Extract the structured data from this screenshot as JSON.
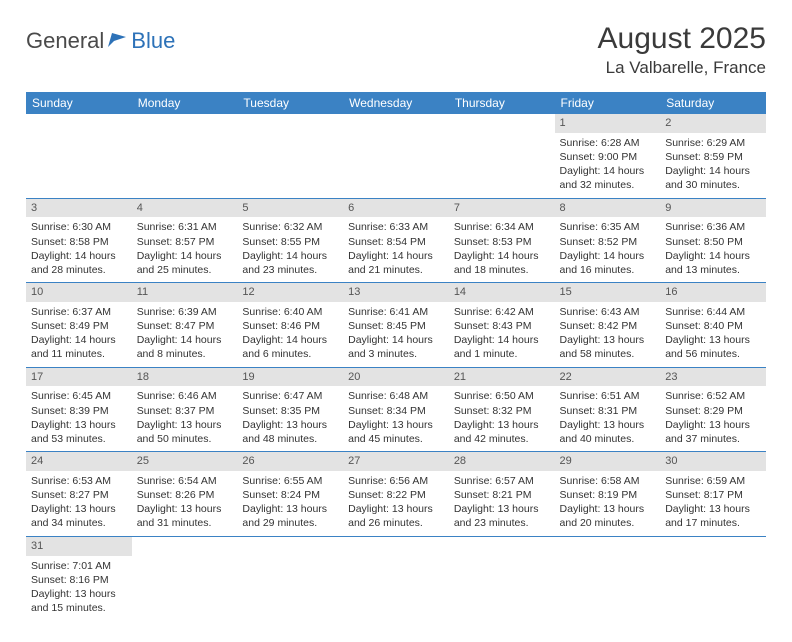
{
  "logo": {
    "text1": "General",
    "text2": "Blue"
  },
  "title": "August 2025",
  "location": "La Valbarelle, France",
  "colors": {
    "header_bg": "#3b82c4",
    "header_text": "#ffffff",
    "daynum_bg": "#e3e3e3",
    "border": "#3b82c4",
    "logo_gray": "#4a4a4a",
    "logo_blue": "#2d72b8"
  },
  "day_headers": [
    "Sunday",
    "Monday",
    "Tuesday",
    "Wednesday",
    "Thursday",
    "Friday",
    "Saturday"
  ],
  "weeks": [
    [
      {
        "n": "",
        "lines": []
      },
      {
        "n": "",
        "lines": []
      },
      {
        "n": "",
        "lines": []
      },
      {
        "n": "",
        "lines": []
      },
      {
        "n": "",
        "lines": []
      },
      {
        "n": "1",
        "lines": [
          "Sunrise: 6:28 AM",
          "Sunset: 9:00 PM",
          "Daylight: 14 hours",
          "and 32 minutes."
        ]
      },
      {
        "n": "2",
        "lines": [
          "Sunrise: 6:29 AM",
          "Sunset: 8:59 PM",
          "Daylight: 14 hours",
          "and 30 minutes."
        ]
      }
    ],
    [
      {
        "n": "3",
        "lines": [
          "Sunrise: 6:30 AM",
          "Sunset: 8:58 PM",
          "Daylight: 14 hours",
          "and 28 minutes."
        ]
      },
      {
        "n": "4",
        "lines": [
          "Sunrise: 6:31 AM",
          "Sunset: 8:57 PM",
          "Daylight: 14 hours",
          "and 25 minutes."
        ]
      },
      {
        "n": "5",
        "lines": [
          "Sunrise: 6:32 AM",
          "Sunset: 8:55 PM",
          "Daylight: 14 hours",
          "and 23 minutes."
        ]
      },
      {
        "n": "6",
        "lines": [
          "Sunrise: 6:33 AM",
          "Sunset: 8:54 PM",
          "Daylight: 14 hours",
          "and 21 minutes."
        ]
      },
      {
        "n": "7",
        "lines": [
          "Sunrise: 6:34 AM",
          "Sunset: 8:53 PM",
          "Daylight: 14 hours",
          "and 18 minutes."
        ]
      },
      {
        "n": "8",
        "lines": [
          "Sunrise: 6:35 AM",
          "Sunset: 8:52 PM",
          "Daylight: 14 hours",
          "and 16 minutes."
        ]
      },
      {
        "n": "9",
        "lines": [
          "Sunrise: 6:36 AM",
          "Sunset: 8:50 PM",
          "Daylight: 14 hours",
          "and 13 minutes."
        ]
      }
    ],
    [
      {
        "n": "10",
        "lines": [
          "Sunrise: 6:37 AM",
          "Sunset: 8:49 PM",
          "Daylight: 14 hours",
          "and 11 minutes."
        ]
      },
      {
        "n": "11",
        "lines": [
          "Sunrise: 6:39 AM",
          "Sunset: 8:47 PM",
          "Daylight: 14 hours",
          "and 8 minutes."
        ]
      },
      {
        "n": "12",
        "lines": [
          "Sunrise: 6:40 AM",
          "Sunset: 8:46 PM",
          "Daylight: 14 hours",
          "and 6 minutes."
        ]
      },
      {
        "n": "13",
        "lines": [
          "Sunrise: 6:41 AM",
          "Sunset: 8:45 PM",
          "Daylight: 14 hours",
          "and 3 minutes."
        ]
      },
      {
        "n": "14",
        "lines": [
          "Sunrise: 6:42 AM",
          "Sunset: 8:43 PM",
          "Daylight: 14 hours",
          "and 1 minute."
        ]
      },
      {
        "n": "15",
        "lines": [
          "Sunrise: 6:43 AM",
          "Sunset: 8:42 PM",
          "Daylight: 13 hours",
          "and 58 minutes."
        ]
      },
      {
        "n": "16",
        "lines": [
          "Sunrise: 6:44 AM",
          "Sunset: 8:40 PM",
          "Daylight: 13 hours",
          "and 56 minutes."
        ]
      }
    ],
    [
      {
        "n": "17",
        "lines": [
          "Sunrise: 6:45 AM",
          "Sunset: 8:39 PM",
          "Daylight: 13 hours",
          "and 53 minutes."
        ]
      },
      {
        "n": "18",
        "lines": [
          "Sunrise: 6:46 AM",
          "Sunset: 8:37 PM",
          "Daylight: 13 hours",
          "and 50 minutes."
        ]
      },
      {
        "n": "19",
        "lines": [
          "Sunrise: 6:47 AM",
          "Sunset: 8:35 PM",
          "Daylight: 13 hours",
          "and 48 minutes."
        ]
      },
      {
        "n": "20",
        "lines": [
          "Sunrise: 6:48 AM",
          "Sunset: 8:34 PM",
          "Daylight: 13 hours",
          "and 45 minutes."
        ]
      },
      {
        "n": "21",
        "lines": [
          "Sunrise: 6:50 AM",
          "Sunset: 8:32 PM",
          "Daylight: 13 hours",
          "and 42 minutes."
        ]
      },
      {
        "n": "22",
        "lines": [
          "Sunrise: 6:51 AM",
          "Sunset: 8:31 PM",
          "Daylight: 13 hours",
          "and 40 minutes."
        ]
      },
      {
        "n": "23",
        "lines": [
          "Sunrise: 6:52 AM",
          "Sunset: 8:29 PM",
          "Daylight: 13 hours",
          "and 37 minutes."
        ]
      }
    ],
    [
      {
        "n": "24",
        "lines": [
          "Sunrise: 6:53 AM",
          "Sunset: 8:27 PM",
          "Daylight: 13 hours",
          "and 34 minutes."
        ]
      },
      {
        "n": "25",
        "lines": [
          "Sunrise: 6:54 AM",
          "Sunset: 8:26 PM",
          "Daylight: 13 hours",
          "and 31 minutes."
        ]
      },
      {
        "n": "26",
        "lines": [
          "Sunrise: 6:55 AM",
          "Sunset: 8:24 PM",
          "Daylight: 13 hours",
          "and 29 minutes."
        ]
      },
      {
        "n": "27",
        "lines": [
          "Sunrise: 6:56 AM",
          "Sunset: 8:22 PM",
          "Daylight: 13 hours",
          "and 26 minutes."
        ]
      },
      {
        "n": "28",
        "lines": [
          "Sunrise: 6:57 AM",
          "Sunset: 8:21 PM",
          "Daylight: 13 hours",
          "and 23 minutes."
        ]
      },
      {
        "n": "29",
        "lines": [
          "Sunrise: 6:58 AM",
          "Sunset: 8:19 PM",
          "Daylight: 13 hours",
          "and 20 minutes."
        ]
      },
      {
        "n": "30",
        "lines": [
          "Sunrise: 6:59 AM",
          "Sunset: 8:17 PM",
          "Daylight: 13 hours",
          "and 17 minutes."
        ]
      }
    ],
    [
      {
        "n": "31",
        "lines": [
          "Sunrise: 7:01 AM",
          "Sunset: 8:16 PM",
          "Daylight: 13 hours",
          "and 15 minutes."
        ]
      },
      {
        "n": "",
        "lines": []
      },
      {
        "n": "",
        "lines": []
      },
      {
        "n": "",
        "lines": []
      },
      {
        "n": "",
        "lines": []
      },
      {
        "n": "",
        "lines": []
      },
      {
        "n": "",
        "lines": []
      }
    ]
  ]
}
